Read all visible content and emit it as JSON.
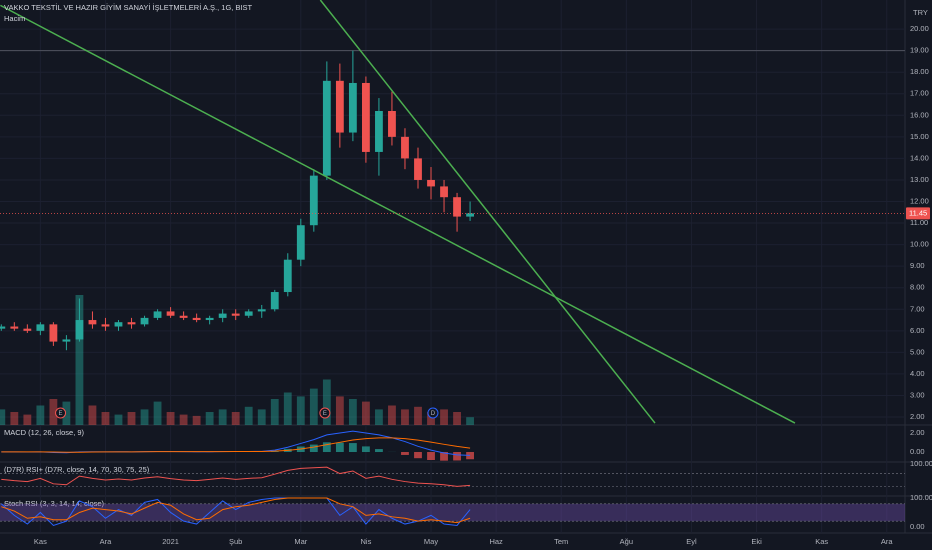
{
  "chart_data": {
    "type": "candlestick",
    "title": "VAKKO TEKSTİL VE HAZIR GİYİM SANAYİ İŞLETMELERİ A.Ş., 1G, BIST",
    "volume_label": "Hacim",
    "currency": "TRY",
    "x": [
      -0.6,
      -0.4,
      -0.2,
      0,
      0.2,
      0.4,
      0.6,
      0.8,
      1,
      1.2,
      1.4,
      1.6,
      1.8,
      2,
      2.2,
      2.4,
      2.6,
      2.8,
      3,
      3.2,
      3.4,
      3.6,
      3.8,
      4,
      4.2,
      4.4,
      4.6,
      4.8,
      5,
      5.2,
      5.4,
      5.6,
      5.8,
      6,
      6.2,
      6.4,
      6.6
    ],
    "open": [
      6.1,
      6.2,
      6.1,
      6.0,
      6.3,
      5.5,
      5.6,
      6.5,
      6.3,
      6.2,
      6.4,
      6.3,
      6.6,
      6.9,
      6.7,
      6.6,
      6.5,
      6.6,
      6.8,
      6.7,
      6.9,
      7.0,
      7.8,
      9.3,
      10.9,
      13.2,
      17.6,
      15.2,
      17.5,
      14.3,
      16.2,
      15.0,
      14.0,
      13.0,
      12.7,
      12.2,
      11.3
    ],
    "high": [
      6.3,
      6.4,
      6.3,
      6.4,
      6.4,
      5.8,
      7.5,
      6.9,
      6.6,
      6.5,
      6.6,
      6.7,
      7.0,
      7.1,
      6.9,
      6.8,
      6.7,
      7.0,
      7.0,
      7.0,
      7.2,
      7.9,
      9.6,
      11.2,
      13.5,
      18.5,
      18.4,
      19.0,
      17.8,
      16.8,
      17.1,
      15.4,
      14.5,
      13.6,
      13.0,
      12.4,
      12.0
    ],
    "low": [
      6.0,
      6.0,
      5.9,
      5.8,
      5.3,
      5.1,
      5.5,
      6.1,
      6.0,
      6.0,
      6.1,
      6.2,
      6.5,
      6.6,
      6.5,
      6.4,
      6.3,
      6.4,
      6.5,
      6.6,
      6.6,
      6.9,
      7.6,
      9.0,
      10.6,
      13.0,
      14.5,
      14.8,
      13.8,
      13.2,
      14.6,
      13.5,
      12.6,
      12.1,
      11.5,
      10.6,
      11.1
    ],
    "close": [
      6.2,
      6.1,
      6.0,
      6.3,
      5.5,
      5.6,
      6.5,
      6.3,
      6.2,
      6.4,
      6.3,
      6.6,
      6.9,
      6.7,
      6.6,
      6.5,
      6.6,
      6.8,
      6.7,
      6.9,
      7.0,
      7.8,
      9.3,
      10.9,
      13.2,
      17.6,
      15.2,
      17.5,
      14.3,
      16.2,
      15.0,
      14.0,
      13.0,
      12.7,
      12.2,
      11.3,
      11.45
    ],
    "up_color": "#26a69a",
    "down_color": "#ef5350",
    "xlim": [
      -0.62,
      13.28
    ],
    "xticks": [
      {
        "value": 0,
        "label": "Kas"
      },
      {
        "value": 1,
        "label": "Ara"
      },
      {
        "value": 2,
        "label": "2021"
      },
      {
        "value": 3,
        "label": "Şub"
      },
      {
        "value": 4,
        "label": "Mar"
      },
      {
        "value": 5,
        "label": "Nis"
      },
      {
        "value": 6,
        "label": "May"
      },
      {
        "value": 7,
        "label": "Haz"
      },
      {
        "value": 8,
        "label": "Tem"
      },
      {
        "value": 9,
        "label": "Ağu"
      },
      {
        "value": 10,
        "label": "Eyl"
      },
      {
        "value": 11,
        "label": "Eki"
      },
      {
        "value": 12,
        "label": "Kas"
      },
      {
        "value": 13,
        "label": "Ara"
      }
    ],
    "ylim": [
      1.63,
      21.35
    ],
    "yticks": [
      {
        "value": 2,
        "label": "2.00"
      },
      {
        "value": 3,
        "label": "3.00"
      },
      {
        "value": 4,
        "label": "4.00"
      },
      {
        "value": 5,
        "label": "5.00"
      },
      {
        "value": 6,
        "label": "6.00"
      },
      {
        "value": 7,
        "label": "7.00"
      },
      {
        "value": 8,
        "label": "8.00"
      },
      {
        "value": 9,
        "label": "9.00"
      },
      {
        "value": 10,
        "label": "10.00"
      },
      {
        "value": 11,
        "label": "11.00"
      },
      {
        "value": 12,
        "label": "12.00"
      },
      {
        "value": 13,
        "label": "13.00"
      },
      {
        "value": 14,
        "label": "14.00"
      },
      {
        "value": 15,
        "label": "15.00"
      },
      {
        "value": 16,
        "label": "16.00"
      },
      {
        "value": 17,
        "label": "17.00"
      },
      {
        "value": 18,
        "label": "18.00"
      },
      {
        "value": 19,
        "label": "19.00"
      },
      {
        "value": 20,
        "label": "20.00"
      }
    ],
    "grid": true,
    "reference_lines": [
      {
        "value": 19,
        "color": "#50535e"
      }
    ],
    "trend_lines": [
      {
        "x": [
          -0.614,
          11.59
        ],
        "y": [
          21.1,
          1.72
        ],
        "color": "#4caf50"
      },
      {
        "x": [
          4.3,
          9.44
        ],
        "y": [
          21.35,
          1.72
        ],
        "color": "#4caf50"
      }
    ],
    "volume": {
      "values": [
        12,
        10,
        8,
        15,
        20,
        18,
        100,
        15,
        10,
        8,
        10,
        12,
        18,
        10,
        8,
        7,
        10,
        12,
        10,
        14,
        12,
        20,
        25,
        22,
        28,
        35,
        22,
        20,
        18,
        12,
        15,
        12,
        14,
        10,
        12,
        10,
        6
      ],
      "ylim": [
        0,
        100
      ]
    },
    "events": [
      {
        "x": 0.31,
        "label": "E"
      },
      {
        "x": 4.37,
        "label": "E"
      },
      {
        "x": 6.03,
        "label": "D"
      }
    ],
    "indicators": [
      {
        "type": "macd",
        "title": "MACD (12, 26, close, 9)",
        "ylim": [
          -1.05,
          2.84
        ],
        "yticks": [
          {
            "value": 2,
            "label": "2.00"
          },
          {
            "value": 0,
            "label": "0.00"
          }
        ],
        "histogram": {
          "up_color": "#26a69a",
          "down_color": "#ef5350",
          "values": [
            0,
            -0.01,
            -0.01,
            0,
            -0.05,
            -0.05,
            0.04,
            0.03,
            0.01,
            0.01,
            0,
            0.01,
            0.02,
            0.01,
            0,
            -0.01,
            -0.01,
            0.01,
            0,
            0.01,
            0.01,
            0.11,
            0.33,
            0.58,
            0.78,
            1.02,
            0.98,
            0.94,
            0.59,
            0.31,
            0.01,
            -0.31,
            -0.65,
            -0.84,
            -0.91,
            -0.89,
            -0.76
          ]
        },
        "series": [
          {
            "color": "#2962ff",
            "values": [
              0.02,
              0.01,
              0,
              0.01,
              -0.05,
              -0.08,
              0.02,
              0.03,
              0.02,
              0.03,
              0.02,
              0.04,
              0.06,
              0.05,
              0.04,
              0.03,
              0.03,
              0.05,
              0.05,
              0.06,
              0.07,
              0.2,
              0.5,
              0.9,
              1.3,
              1.8,
              2.0,
              2.2,
              2.0,
              1.8,
              1.5,
              1.1,
              0.6,
              0.2,
              -0.1,
              -0.3,
              -0.35
            ]
          },
          {
            "color": "#ff6d00",
            "values": [
              0.02,
              0.02,
              0.01,
              0.01,
              0,
              -0.03,
              -0.02,
              0,
              0.01,
              0.02,
              0.02,
              0.03,
              0.04,
              0.04,
              0.04,
              0.04,
              0.04,
              0.04,
              0.05,
              0.05,
              0.06,
              0.09,
              0.17,
              0.32,
              0.52,
              0.78,
              1.02,
              1.26,
              1.41,
              1.49,
              1.49,
              1.41,
              1.25,
              1.04,
              0.81,
              0.59,
              0.41
            ]
          }
        ]
      },
      {
        "type": "rsi",
        "title": "(D7R) RSI+ (D7R, close, 14, 70, 30, 75, 25)",
        "ylim": [
          0,
          106
        ],
        "yticks": [
          {
            "value": 100,
            "label": "100.00"
          }
        ],
        "levels": [
          70,
          30
        ],
        "series": [
          {
            "color": "#ef5350",
            "values": [
              52,
              48,
              45,
              55,
              38,
              35,
              62,
              55,
              50,
              53,
              50,
              56,
              60,
              54,
              50,
              48,
              52,
              56,
              52,
              55,
              57,
              68,
              80,
              86,
              88,
              90,
              70,
              78,
              55,
              62,
              52,
              45,
              40,
              38,
              35,
              30,
              33
            ]
          }
        ]
      },
      {
        "type": "stoch",
        "title": "Stoch RSI (3, 3, 14, 14, close)",
        "ylim": [
          -21,
          107
        ],
        "yticks": [
          {
            "value": 100,
            "label": "100.00"
          },
          {
            "value": 0,
            "label": "0.00"
          }
        ],
        "band": {
          "values": [
            20,
            80
          ],
          "color": "#7e57c2"
        },
        "series": [
          {
            "color": "#2962ff",
            "values": [
              80,
              40,
              10,
              50,
              5,
              20,
              90,
              70,
              30,
              60,
              40,
              85,
              95,
              50,
              20,
              10,
              50,
              90,
              60,
              85,
              95,
              100,
              100,
              100,
              100,
              100,
              40,
              70,
              10,
              60,
              30,
              10,
              20,
              40,
              10,
              5,
              60
            ]
          },
          {
            "color": "#ff6d00",
            "values": [
              70,
              55,
              30,
              35,
              25,
              25,
              50,
              65,
              60,
              55,
              45,
              65,
              85,
              75,
              45,
              25,
              30,
              60,
              70,
              75,
              85,
              95,
              100,
              100,
              100,
              100,
              80,
              70,
              40,
              45,
              35,
              30,
              20,
              25,
              20,
              15,
              30
            ]
          }
        ]
      }
    ]
  }
}
